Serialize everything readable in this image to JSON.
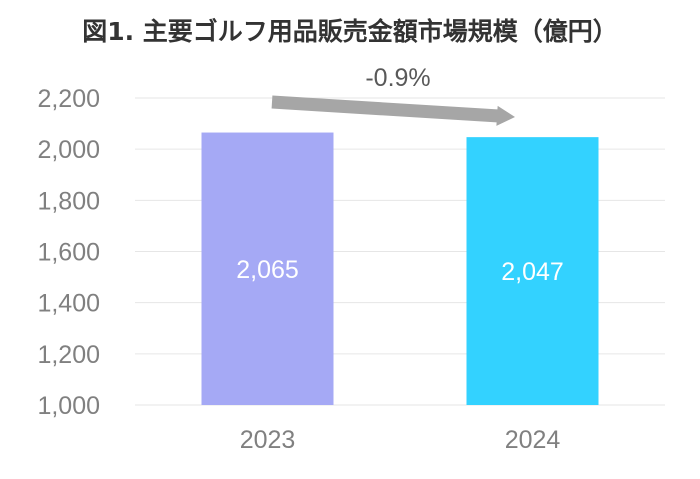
{
  "chart_data": {
    "type": "bar",
    "title": "図1. 主要ゴルフ用品販売金額市場規模（億円）",
    "categories": [
      "2023",
      "2024"
    ],
    "values": [
      2065,
      2047
    ],
    "data_labels": [
      "2,065",
      "2,047"
    ],
    "bar_colors": [
      "#a5a9f5",
      "#33d2ff"
    ],
    "ylim": [
      1000,
      2200
    ],
    "yticks": [
      1000,
      1200,
      1400,
      1600,
      1800,
      2000,
      2200
    ],
    "ytick_labels": [
      "1,000",
      "1,200",
      "1,400",
      "1,600",
      "1,800",
      "2,000",
      "2,200"
    ],
    "grid": true,
    "grid_color": "#e6e6e6",
    "annotation": {
      "text": "-0.9%",
      "arrow_color": "#a6a6a6"
    }
  }
}
